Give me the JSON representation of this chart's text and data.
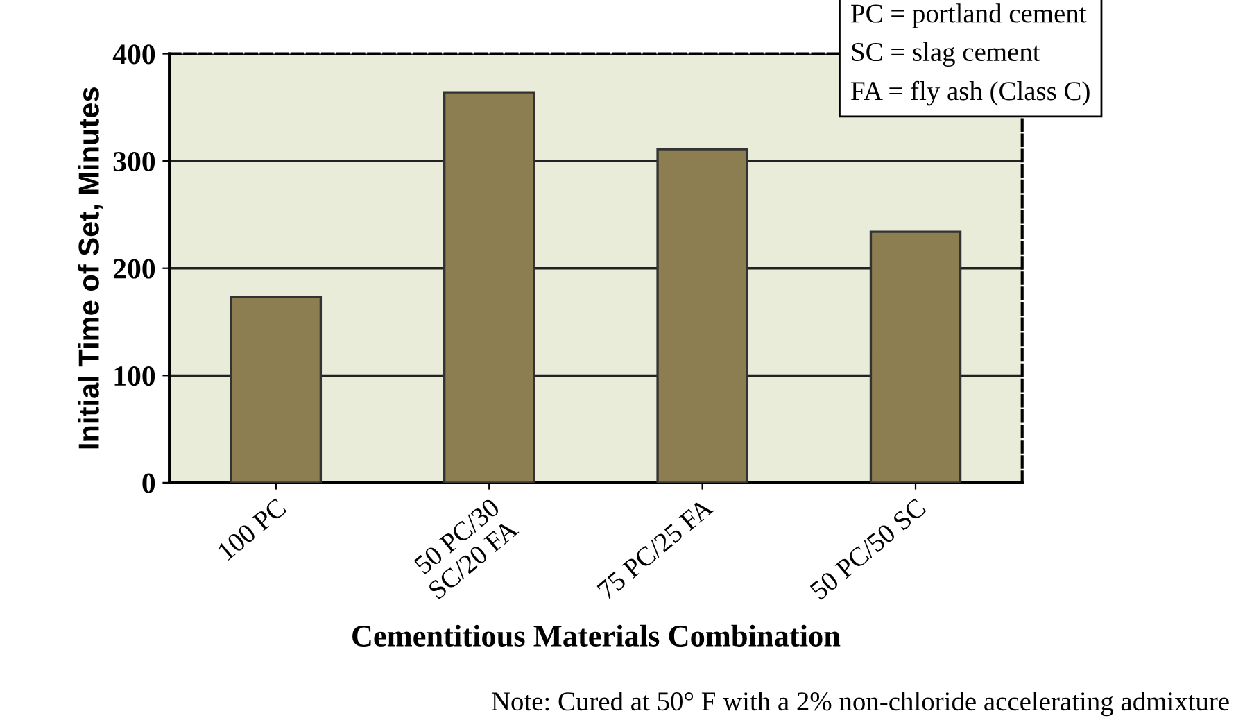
{
  "chart_data": {
    "type": "bar",
    "xlabel": "Cementitious Materials Combination",
    "ylabel": "Initial Time of Set, Minutes",
    "categories": [
      "100 PC",
      "50 PC/30\nSC/20 FA",
      "75 PC/25 FA",
      "50 PC/50 SC"
    ],
    "values": [
      173,
      364,
      311,
      234
    ],
    "color": "#8c7e50",
    "ylim": [
      0,
      400
    ],
    "yticks": [
      0,
      100,
      200,
      300,
      400
    ],
    "grid": "y",
    "annotations": [
      "PC = portland cement\nSC = slag cement\nFA = fly ash (Class C)",
      "Note: Cured at 50° F with a 2% non-chloride accelerating admixture"
    ]
  }
}
